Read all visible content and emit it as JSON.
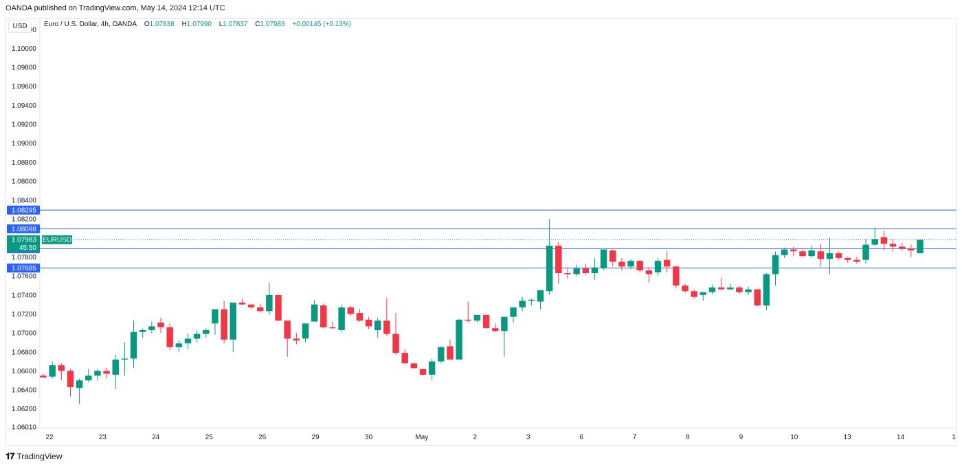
{
  "header": {
    "publisher_text": "OANDA published on TradingView.com, May 14, 2024 12:14 UTC"
  },
  "currency_label": "USD",
  "legend": {
    "symbol": "Euro / U.S. Dollar, 4h, OANDA",
    "open_label": "O",
    "open": "1.07838",
    "high_label": "H",
    "high": "1.07990",
    "low_label": "L",
    "low": "1.07837",
    "close_label": "C",
    "close": "1.07983",
    "change": "+0.00145 (+0.13%)"
  },
  "footer": {
    "brand": "TradingView"
  },
  "colors": {
    "up": "#089981",
    "down": "#f23645",
    "hline": "#2962ff",
    "grid": "#f0f3fa",
    "axis_text": "#131722"
  },
  "chart_data": {
    "type": "candlestick",
    "symbol_badge": "EURUSD",
    "ylim": [
      1.0601,
      1.1022
    ],
    "y_ticks": [
      "1.10200",
      "1.10000",
      "1.09800",
      "1.09600",
      "1.09400",
      "1.09200",
      "1.09000",
      "1.08800",
      "1.08600",
      "1.08400",
      "1.08200",
      "1.07800",
      "1.07600",
      "1.07400",
      "1.07200",
      "1.07000",
      "1.06800",
      "1.06600",
      "1.06400",
      "1.06200",
      "1.06010"
    ],
    "x_labels": [
      "22",
      "23",
      "24",
      "25",
      "26",
      "29",
      "30",
      "May",
      "2",
      "3",
      "6",
      "7",
      "8",
      "9",
      "10",
      "13",
      "14",
      "1"
    ],
    "horizontal_levels": [
      "1.08295",
      "1.08098",
      "1.07888",
      "1.07685"
    ],
    "last_price": "1.07983",
    "countdown": "45:50",
    "candles": [
      [
        1.0655,
        1.0657,
        1.0653,
        1.0653
      ],
      [
        1.0654,
        1.067,
        1.0652,
        1.0666
      ],
      [
        1.0666,
        1.0668,
        1.065,
        1.066
      ],
      [
        1.066,
        1.0662,
        1.0633,
        1.0643
      ],
      [
        1.0642,
        1.0652,
        1.0625,
        1.065
      ],
      [
        1.065,
        1.0662,
        1.0648,
        1.0655
      ],
      [
        1.0655,
        1.0662,
        1.065,
        1.066
      ],
      [
        1.066,
        1.0663,
        1.0652,
        1.0657
      ],
      [
        1.0656,
        1.0677,
        1.0641,
        1.0672
      ],
      [
        1.0672,
        1.069,
        1.0655,
        1.0673
      ],
      [
        1.0673,
        1.0713,
        1.0663,
        1.0701
      ],
      [
        1.0701,
        1.0705,
        1.0695,
        1.0703
      ],
      [
        1.0703,
        1.0712,
        1.07,
        1.0707
      ],
      [
        1.0711,
        1.0716,
        1.07,
        1.0706
      ],
      [
        1.0706,
        1.071,
        1.0682,
        1.0685
      ],
      [
        1.0685,
        1.0693,
        1.068,
        1.0689
      ],
      [
        1.0689,
        1.0699,
        1.0683,
        1.0694
      ],
      [
        1.0694,
        1.0703,
        1.069,
        1.0699
      ],
      [
        1.0699,
        1.0705,
        1.0695,
        1.0703
      ],
      [
        1.071,
        1.0725,
        1.0698,
        1.0725
      ],
      [
        1.0725,
        1.0734,
        1.0689,
        1.0693
      ],
      [
        1.0693,
        1.073,
        1.068,
        1.0732
      ],
      [
        1.0732,
        1.0736,
        1.073,
        1.073
      ],
      [
        1.073,
        1.073,
        1.0725,
        1.0727
      ],
      [
        1.0727,
        1.0731,
        1.0722,
        1.0723
      ],
      [
        1.0723,
        1.0753,
        1.0719,
        1.074
      ],
      [
        1.074,
        1.074,
        1.0713,
        1.0713
      ],
      [
        1.0713,
        1.0713,
        1.0675,
        1.0694
      ],
      [
        1.0694,
        1.07,
        1.0688,
        1.0692
      ],
      [
        1.0694,
        1.071,
        1.069,
        1.071
      ],
      [
        1.0712,
        1.0735,
        1.0712,
        1.073
      ],
      [
        1.0729,
        1.0731,
        1.0705,
        1.0706
      ],
      [
        1.0706,
        1.0712,
        1.0704,
        1.0705
      ],
      [
        1.0703,
        1.073,
        1.0701,
        1.0727
      ],
      [
        1.0727,
        1.0729,
        1.0718,
        1.072
      ],
      [
        1.0721,
        1.0725,
        1.0712,
        1.0713
      ],
      [
        1.0714,
        1.0717,
        1.0704,
        1.0707
      ],
      [
        1.0703,
        1.0716,
        1.0695,
        1.0713
      ],
      [
        1.0713,
        1.0737,
        1.0697,
        1.0699
      ],
      [
        1.0699,
        1.0721,
        1.0677,
        1.0679
      ],
      [
        1.0679,
        1.0683,
        1.0668,
        1.0668
      ],
      [
        1.0668,
        1.0668,
        1.0662,
        1.0663
      ],
      [
        1.0662,
        1.0662,
        1.0655,
        1.0656
      ],
      [
        1.0656,
        1.0673,
        1.065,
        1.067
      ],
      [
        1.067,
        1.0686,
        1.0668,
        1.0685
      ],
      [
        1.0686,
        1.0693,
        1.0674,
        1.0672
      ],
      [
        1.0672,
        1.0715,
        1.0672,
        1.0714
      ],
      [
        1.0714,
        1.0733,
        1.0711,
        1.0713
      ],
      [
        1.0713,
        1.0718,
        1.0711,
        1.0719
      ],
      [
        1.0719,
        1.0719,
        1.0708,
        1.0705
      ],
      [
        1.0705,
        1.071,
        1.0701,
        1.0702
      ],
      [
        1.0702,
        1.0716,
        1.0675,
        1.0717
      ],
      [
        1.0717,
        1.0727,
        1.0711,
        1.0727
      ],
      [
        1.0727,
        1.0738,
        1.0723,
        1.0734
      ],
      [
        1.0734,
        1.0736,
        1.0729,
        1.0735
      ],
      [
        1.0733,
        1.0745,
        1.0725,
        1.0745
      ],
      [
        1.0744,
        1.082,
        1.074,
        1.0792
      ],
      [
        1.0792,
        1.0796,
        1.0752,
        1.0763
      ],
      [
        1.0763,
        1.0768,
        1.0757,
        1.0762
      ],
      [
        1.0762,
        1.0772,
        1.076,
        1.0768
      ],
      [
        1.0768,
        1.0773,
        1.0761,
        1.0763
      ],
      [
        1.0763,
        1.0779,
        1.0756,
        1.0769
      ],
      [
        1.0768,
        1.0788,
        1.0766,
        1.0788
      ],
      [
        1.0787,
        1.0788,
        1.077,
        1.0775
      ],
      [
        1.0775,
        1.0779,
        1.0766,
        1.077
      ],
      [
        1.077,
        1.0778,
        1.0767,
        1.0776
      ],
      [
        1.0776,
        1.0777,
        1.0764,
        1.0766
      ],
      [
        1.0766,
        1.0769,
        1.0753,
        1.0762
      ],
      [
        1.0764,
        1.0779,
        1.076,
        1.0776
      ],
      [
        1.0777,
        1.0786,
        1.0764,
        1.077
      ],
      [
        1.077,
        1.0771,
        1.0747,
        1.075
      ],
      [
        1.075,
        1.0752,
        1.0742,
        1.0744
      ],
      [
        1.0744,
        1.0746,
        1.0736,
        1.0738
      ],
      [
        1.074,
        1.0743,
        1.0734,
        1.0743
      ],
      [
        1.0743,
        1.0751,
        1.0741,
        1.0748
      ],
      [
        1.0748,
        1.0758,
        1.0745,
        1.0746
      ],
      [
        1.0746,
        1.0752,
        1.0745,
        1.0748
      ],
      [
        1.0748,
        1.075,
        1.0741,
        1.0743
      ],
      [
        1.0743,
        1.0749,
        1.074,
        1.0746
      ],
      [
        1.0746,
        1.0746,
        1.0728,
        1.0729
      ],
      [
        1.0729,
        1.0763,
        1.0724,
        1.0762
      ],
      [
        1.0762,
        1.0786,
        1.075,
        1.0782
      ],
      [
        1.0782,
        1.079,
        1.0779,
        1.0788
      ],
      [
        1.0788,
        1.0791,
        1.0781,
        1.0786
      ],
      [
        1.0786,
        1.0788,
        1.078,
        1.0781
      ],
      [
        1.0781,
        1.0792,
        1.0779,
        1.0787
      ],
      [
        1.0786,
        1.0794,
        1.077,
        1.0778
      ],
      [
        1.0778,
        1.0801,
        1.0762,
        1.0784
      ],
      [
        1.0784,
        1.0786,
        1.0777,
        1.0779
      ],
      [
        1.0779,
        1.078,
        1.0774,
        1.0777
      ],
      [
        1.0777,
        1.078,
        1.0773,
        1.0775
      ],
      [
        1.0777,
        1.0799,
        1.0773,
        1.0793
      ],
      [
        1.0793,
        1.0811,
        1.0792,
        1.0799
      ],
      [
        1.0801,
        1.0808,
        1.0787,
        1.0794
      ],
      [
        1.0794,
        1.0799,
        1.0786,
        1.0791
      ],
      [
        1.0791,
        1.0795,
        1.0786,
        1.0789
      ],
      [
        1.0789,
        1.0793,
        1.078,
        1.0787
      ],
      [
        1.0784,
        1.0799,
        1.0784,
        1.0798
      ]
    ]
  }
}
